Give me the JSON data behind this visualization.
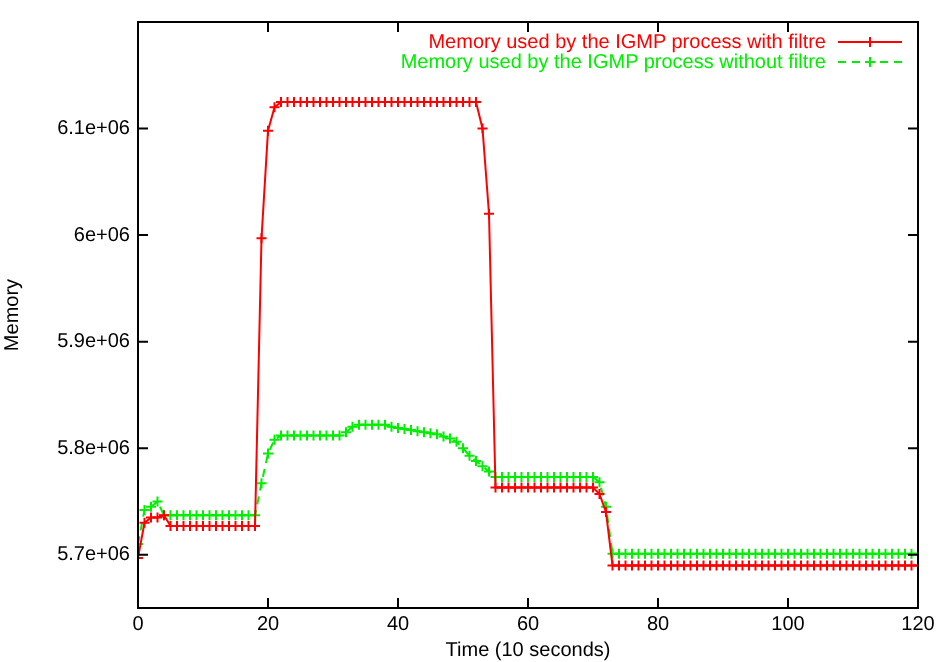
{
  "chart_data": {
    "type": "line",
    "xlabel": "Time (10 seconds)",
    "ylabel": "Memory",
    "x": [
      0,
      1,
      2,
      3,
      4,
      5,
      6,
      7,
      8,
      9,
      10,
      11,
      12,
      13,
      14,
      15,
      16,
      17,
      18,
      19,
      20,
      21,
      22,
      23,
      24,
      25,
      26,
      27,
      28,
      29,
      30,
      31,
      32,
      33,
      34,
      35,
      36,
      37,
      38,
      39,
      40,
      41,
      42,
      43,
      44,
      45,
      46,
      47,
      48,
      49,
      50,
      51,
      52,
      53,
      54,
      55,
      56,
      57,
      58,
      59,
      60,
      61,
      62,
      63,
      64,
      65,
      66,
      67,
      68,
      69,
      70,
      71,
      72,
      73,
      74,
      75,
      76,
      77,
      78,
      79,
      80,
      81,
      82,
      83,
      84,
      85,
      86,
      87,
      88,
      89,
      90,
      91,
      92,
      93,
      94,
      95,
      96,
      97,
      98,
      99,
      100,
      101,
      102,
      103,
      104,
      105,
      106,
      107,
      108,
      109,
      110,
      111,
      112,
      113,
      114,
      115,
      116,
      117,
      118,
      119,
      120
    ],
    "series": [
      {
        "name": "Memory used by the IGMP process with filtre",
        "color": "#ff0000",
        "marker": "cross",
        "line_style": "solid",
        "values": [
          5697000,
          5730000,
          5735000,
          5735000,
          5737000,
          5727000,
          5727000,
          5727000,
          5727000,
          5727000,
          5727000,
          5727000,
          5727000,
          5727000,
          5727000,
          5727000,
          5727000,
          5727000,
          5727000,
          5997000,
          6098000,
          6120000,
          6125000,
          6125000,
          6125000,
          6125000,
          6125000,
          6125000,
          6125000,
          6125000,
          6125000,
          6125000,
          6125000,
          6125000,
          6125000,
          6125000,
          6125000,
          6125000,
          6125000,
          6125000,
          6125000,
          6125000,
          6125000,
          6125000,
          6125000,
          6125000,
          6125000,
          6125000,
          6125000,
          6125000,
          6125000,
          6125000,
          6125000,
          6100000,
          6020000,
          5763000,
          5763000,
          5763000,
          5763000,
          5763000,
          5763000,
          5763000,
          5763000,
          5763000,
          5763000,
          5763000,
          5763000,
          5763000,
          5763000,
          5763000,
          5763000,
          5757000,
          5740000,
          5690000,
          5690000,
          5690000,
          5690000,
          5690000,
          5690000,
          5690000,
          5690000,
          5690000,
          5690000,
          5690000,
          5690000,
          5690000,
          5690000,
          5690000,
          5690000,
          5690000,
          5690000,
          5690000,
          5690000,
          5690000,
          5690000,
          5690000,
          5690000,
          5690000,
          5690000,
          5690000,
          5690000,
          5690000,
          5690000,
          5690000,
          5690000,
          5690000,
          5690000,
          5690000,
          5690000,
          5690000,
          5690000,
          5690000,
          5690000,
          5690000,
          5690000,
          5690000,
          5690000,
          5690000,
          5690000,
          5690000,
          5690000
        ]
      },
      {
        "name": "Memory used by the IGMP process without filtre",
        "color": "#00ee00",
        "marker": "cross",
        "line_style": "dashed",
        "values": [
          5710000,
          5742000,
          5745000,
          5750000,
          5737000,
          5737000,
          5737000,
          5737000,
          5737000,
          5737000,
          5737000,
          5737000,
          5737000,
          5737000,
          5737000,
          5737000,
          5737000,
          5737000,
          5737000,
          5767000,
          5795000,
          5808000,
          5812000,
          5812000,
          5812000,
          5812000,
          5812000,
          5812000,
          5812000,
          5812000,
          5812000,
          5812000,
          5815000,
          5820000,
          5822000,
          5822000,
          5822000,
          5822000,
          5822000,
          5820000,
          5819000,
          5818000,
          5817000,
          5816000,
          5815000,
          5814000,
          5813000,
          5811000,
          5809000,
          5806000,
          5800000,
          5793000,
          5788000,
          5783000,
          5778000,
          5773000,
          5773000,
          5773000,
          5773000,
          5773000,
          5773000,
          5773000,
          5773000,
          5773000,
          5773000,
          5773000,
          5773000,
          5773000,
          5773000,
          5773000,
          5773000,
          5768000,
          5745000,
          5701000,
          5701000,
          5701000,
          5701000,
          5701000,
          5701000,
          5701000,
          5701000,
          5701000,
          5701000,
          5701000,
          5701000,
          5701000,
          5701000,
          5701000,
          5701000,
          5701000,
          5701000,
          5701000,
          5701000,
          5701000,
          5701000,
          5701000,
          5701000,
          5701000,
          5701000,
          5701000,
          5701000,
          5701000,
          5701000,
          5701000,
          5701000,
          5701000,
          5701000,
          5701000,
          5701000,
          5701000,
          5701000,
          5701000,
          5701000,
          5701000,
          5701000,
          5701000,
          5701000,
          5701000,
          5701000,
          5701000,
          5701000
        ]
      }
    ],
    "xlim": [
      0,
      120
    ],
    "xticks": [
      0,
      20,
      40,
      60,
      80,
      100,
      120
    ],
    "ylim": [
      5650000,
      6200000
    ],
    "yticks": [
      {
        "value": 5700000,
        "label": "5.7e+06"
      },
      {
        "value": 5800000,
        "label": "5.8e+06"
      },
      {
        "value": 5900000,
        "label": "5.9e+06"
      },
      {
        "value": 6000000,
        "label": "6e+06"
      },
      {
        "value": 6100000,
        "label": "6.1e+06"
      }
    ],
    "grid": false,
    "legend": "top right"
  }
}
